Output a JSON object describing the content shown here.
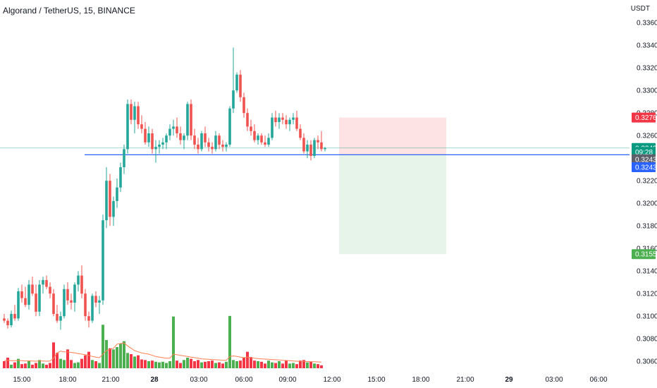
{
  "symbol": {
    "title": "Algorand / TetherUS, 15, BINANCE",
    "currency": "USDT"
  },
  "colors": {
    "up": "#26a69a",
    "down": "#ef5350",
    "volume_up": "#4caf50",
    "volume_down": "#f23645",
    "volume_ma": "#ff7f50",
    "entry_line": "#2962ff",
    "last_price": "#089981",
    "stop_zone": "#fde3e3",
    "target_zone": "#e6f4e9"
  },
  "price_axis": {
    "ticks": [
      "0.3360",
      "0.3340",
      "0.3320",
      "0.3300",
      "0.3280",
      "0.3260",
      "0.3220",
      "0.3200",
      "0.3180",
      "0.3160",
      "0.3140",
      "0.3120",
      "0.3100",
      "0.3080",
      "0.3060"
    ],
    "tags": [
      {
        "text": "0.3276",
        "value": 0.3276,
        "color": "#f23645"
      },
      {
        "text": "0.3249",
        "value": 0.3249,
        "color": "#089981"
      },
      {
        "text": "09:28",
        "value": 0.32455,
        "color": "#089981"
      },
      {
        "text": "0.3243",
        "value": 0.3239,
        "color": "#5d606b"
      },
      {
        "text": "0.3243",
        "value": 0.3232,
        "color": "#2962ff"
      },
      {
        "text": "0.3155",
        "value": 0.3155,
        "color": "#4caf50"
      }
    ]
  },
  "time_axis": {
    "labels": [
      {
        "text": "15:00",
        "bold": false
      },
      {
        "text": "18:00",
        "bold": false
      },
      {
        "text": "21:00",
        "bold": false
      },
      {
        "text": "28",
        "bold": true
      },
      {
        "text": "03:00",
        "bold": false
      },
      {
        "text": "06:00",
        "bold": false
      },
      {
        "text": "09:00",
        "bold": false
      },
      {
        "text": "12:00",
        "bold": false
      },
      {
        "text": "15:00",
        "bold": false
      },
      {
        "text": "18:00",
        "bold": false
      },
      {
        "text": "21:00",
        "bold": false
      },
      {
        "text": "29",
        "bold": true
      },
      {
        "text": "03:00",
        "bold": false
      },
      {
        "text": "06:00",
        "bold": false
      }
    ]
  },
  "position": {
    "entry": 0.3243,
    "stop": 0.3276,
    "target": 0.3155
  },
  "chart_data": {
    "type": "candlestick",
    "title": "Algorand / TetherUS, 15, BINANCE",
    "ylabel": "USDT",
    "ylim": [
      0.3052,
      0.3372
    ],
    "candles": [
      [
        0.3098,
        0.3102,
        0.3094,
        0.3096
      ],
      [
        0.3096,
        0.3098,
        0.3089,
        0.3092
      ],
      [
        0.3092,
        0.3105,
        0.309,
        0.3102
      ],
      [
        0.3102,
        0.311,
        0.3096,
        0.3098
      ],
      [
        0.3098,
        0.3125,
        0.3096,
        0.3122
      ],
      [
        0.3122,
        0.3128,
        0.3112,
        0.3116
      ],
      [
        0.3116,
        0.3126,
        0.3108,
        0.311
      ],
      [
        0.311,
        0.3132,
        0.3106,
        0.3128
      ],
      [
        0.3128,
        0.3135,
        0.3118,
        0.312
      ],
      [
        0.312,
        0.3128,
        0.31,
        0.3104
      ],
      [
        0.3104,
        0.3132,
        0.31,
        0.3128
      ],
      [
        0.3128,
        0.3135,
        0.312,
        0.3132
      ],
      [
        0.3132,
        0.3136,
        0.3124,
        0.3126
      ],
      [
        0.3126,
        0.313,
        0.3116,
        0.312
      ],
      [
        0.312,
        0.3124,
        0.31,
        0.3102
      ],
      [
        0.3102,
        0.311,
        0.3094,
        0.3096
      ],
      [
        0.3096,
        0.3104,
        0.3088,
        0.31
      ],
      [
        0.31,
        0.3128,
        0.3098,
        0.3124
      ],
      [
        0.3124,
        0.313,
        0.311,
        0.3114
      ],
      [
        0.3114,
        0.312,
        0.3106,
        0.3112
      ],
      [
        0.3112,
        0.313,
        0.3104,
        0.3128
      ],
      [
        0.3128,
        0.314,
        0.3122,
        0.3136
      ],
      [
        0.3136,
        0.3145,
        0.3116,
        0.312
      ],
      [
        0.312,
        0.3124,
        0.3096,
        0.31
      ],
      [
        0.31,
        0.3104,
        0.309,
        0.3096
      ],
      [
        0.3096,
        0.312,
        0.3094,
        0.3118
      ],
      [
        0.3118,
        0.3122,
        0.3108,
        0.3112
      ],
      [
        0.3112,
        0.3118,
        0.3102,
        0.3114
      ],
      [
        0.3114,
        0.319,
        0.311,
        0.3185
      ],
      [
        0.3185,
        0.3232,
        0.3178,
        0.322
      ],
      [
        0.322,
        0.3226,
        0.318,
        0.3188
      ],
      [
        0.3188,
        0.3206,
        0.318,
        0.3202
      ],
      [
        0.3202,
        0.3222,
        0.3196,
        0.3214
      ],
      [
        0.3214,
        0.3236,
        0.321,
        0.3232
      ],
      [
        0.3232,
        0.3252,
        0.3226,
        0.3248
      ],
      [
        0.3248,
        0.3292,
        0.3244,
        0.3288
      ],
      [
        0.3288,
        0.3292,
        0.327,
        0.3274
      ],
      [
        0.3274,
        0.329,
        0.3262,
        0.3286
      ],
      [
        0.3286,
        0.329,
        0.3266,
        0.327
      ],
      [
        0.327,
        0.3278,
        0.3262,
        0.3266
      ],
      [
        0.3266,
        0.3272,
        0.3252,
        0.3254
      ],
      [
        0.3254,
        0.3268,
        0.325,
        0.3262
      ],
      [
        0.3262,
        0.3266,
        0.3244,
        0.3248
      ],
      [
        0.3248,
        0.3256,
        0.3236,
        0.325
      ],
      [
        0.325,
        0.3256,
        0.3244,
        0.3252
      ],
      [
        0.3252,
        0.3258,
        0.3248,
        0.3254
      ],
      [
        0.3254,
        0.3262,
        0.3248,
        0.326
      ],
      [
        0.326,
        0.327,
        0.3256,
        0.3266
      ],
      [
        0.3266,
        0.3274,
        0.326,
        0.3268
      ],
      [
        0.3268,
        0.3276,
        0.3258,
        0.3262
      ],
      [
        0.3262,
        0.3268,
        0.3252,
        0.3256
      ],
      [
        0.3256,
        0.3262,
        0.3248,
        0.326
      ],
      [
        0.326,
        0.329,
        0.3256,
        0.3288
      ],
      [
        0.3288,
        0.3292,
        0.3256,
        0.326
      ],
      [
        0.326,
        0.3266,
        0.3248,
        0.3252
      ],
      [
        0.3252,
        0.3258,
        0.3244,
        0.3248
      ],
      [
        0.3248,
        0.3264,
        0.3246,
        0.3262
      ],
      [
        0.3262,
        0.3268,
        0.325,
        0.3254
      ],
      [
        0.3254,
        0.3258,
        0.3246,
        0.325
      ],
      [
        0.325,
        0.3254,
        0.3244,
        0.3248
      ],
      [
        0.3248,
        0.3264,
        0.3246,
        0.326
      ],
      [
        0.326,
        0.3262,
        0.3248,
        0.3252
      ],
      [
        0.3252,
        0.3256,
        0.3246,
        0.325
      ],
      [
        0.325,
        0.3254,
        0.3246,
        0.3252
      ],
      [
        0.3252,
        0.3286,
        0.325,
        0.3284
      ],
      [
        0.3284,
        0.3338,
        0.328,
        0.33
      ],
      [
        0.33,
        0.3316,
        0.3298,
        0.3314
      ],
      [
        0.3314,
        0.3318,
        0.329,
        0.3294
      ],
      [
        0.3294,
        0.3298,
        0.3276,
        0.328
      ],
      [
        0.328,
        0.3284,
        0.3264,
        0.3268
      ],
      [
        0.3268,
        0.3274,
        0.326,
        0.3264
      ],
      [
        0.3264,
        0.327,
        0.3254,
        0.3256
      ],
      [
        0.3256,
        0.3262,
        0.3252,
        0.326
      ],
      [
        0.326,
        0.3262,
        0.3252,
        0.3254
      ],
      [
        0.3254,
        0.326,
        0.325,
        0.3252
      ],
      [
        0.3252,
        0.3262,
        0.325,
        0.3258
      ],
      [
        0.3258,
        0.328,
        0.3256,
        0.3276
      ],
      [
        0.3276,
        0.3282,
        0.3268,
        0.3272
      ],
      [
        0.3272,
        0.328,
        0.3266,
        0.3276
      ],
      [
        0.3276,
        0.328,
        0.327,
        0.3274
      ],
      [
        0.3274,
        0.3278,
        0.3266,
        0.327
      ],
      [
        0.327,
        0.3276,
        0.3264,
        0.3274
      ],
      [
        0.3274,
        0.328,
        0.327,
        0.3276
      ],
      [
        0.3276,
        0.3282,
        0.3264,
        0.3266
      ],
      [
        0.3266,
        0.327,
        0.3256,
        0.3258
      ],
      [
        0.3258,
        0.3262,
        0.3244,
        0.3246
      ],
      [
        0.3246,
        0.3256,
        0.324,
        0.3252
      ],
      [
        0.3252,
        0.3256,
        0.3238,
        0.3242
      ],
      [
        0.3242,
        0.3258,
        0.324,
        0.3256
      ],
      [
        0.3256,
        0.326,
        0.3248,
        0.3254
      ],
      [
        0.3254,
        0.3264,
        0.3246,
        0.3248
      ],
      [
        0.3248,
        0.325,
        0.3246,
        0.3249
      ]
    ],
    "volume_ylim": [
      0,
      6000
    ],
    "volumes": [
      600,
      900,
      300,
      500,
      800,
      350,
      400,
      650,
      300,
      450,
      700,
      400,
      300,
      450,
      2200,
      1300,
      800,
      700,
      1600,
      700,
      450,
      500,
      800,
      1100,
      1400,
      700,
      600,
      450,
      3700,
      2400,
      1700,
      1600,
      1800,
      2100,
      2300,
      1300,
      1200,
      1000,
      1100,
      750,
      700,
      600,
      650,
      550,
      500,
      550,
      450,
      600,
      4400,
      650,
      450,
      700,
      900,
      800,
      600,
      700,
      500,
      550,
      600,
      650,
      450,
      500,
      400,
      550,
      4450,
      700,
      600,
      650,
      900,
      1400,
      950,
      650,
      600,
      550,
      400,
      650,
      500,
      450,
      600,
      400,
      650,
      400,
      450,
      350,
      650,
      700,
      500,
      550,
      400,
      350,
      250
    ],
    "volume_ma": [
      650,
      680,
      650,
      640,
      660,
      640,
      620,
      630,
      610,
      600,
      620,
      610,
      600,
      610,
      850,
      1300,
      1450,
      1400,
      1380,
      1350,
      1300,
      1250,
      1200,
      1150,
      1100,
      1000,
      950,
      900,
      1200,
      1500,
      1600,
      1700,
      2050,
      2100,
      2150,
      1900,
      1700,
      1500,
      1400,
      1300,
      1250,
      1200,
      1100,
      1000,
      950,
      900,
      850,
      850,
      1200,
      1150,
      1100,
      1050,
      1000,
      950,
      900,
      850,
      800,
      780,
      760,
      740,
      720,
      700,
      680,
      680,
      1000,
      1050,
      1000,
      950,
      900,
      950,
      900,
      850,
      820,
      800,
      780,
      760,
      740,
      720,
      700,
      680,
      660,
      640,
      620,
      600,
      590,
      580,
      570,
      560,
      550,
      540,
      530
    ]
  }
}
